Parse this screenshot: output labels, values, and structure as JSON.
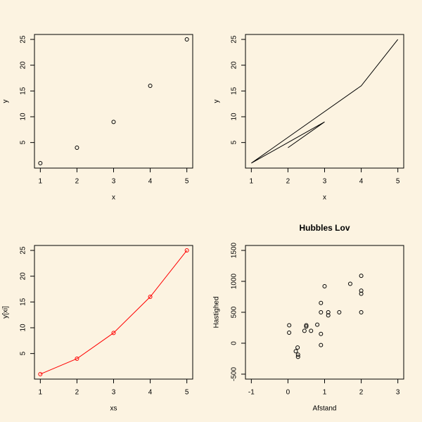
{
  "chart_data": [
    {
      "type": "scatter",
      "x_label": "x",
      "y_label": "y",
      "x": [
        1,
        2,
        3,
        4,
        5
      ],
      "values": [
        1,
        4,
        9,
        16,
        25
      ],
      "color": "#000000",
      "xlim": [
        0.84,
        5.16
      ],
      "ylim": [
        0.04,
        25.96
      ],
      "xticks": [
        1,
        2,
        3,
        4,
        5
      ],
      "yticks": [
        5,
        10,
        15,
        20,
        25
      ]
    },
    {
      "type": "line",
      "x_label": "x",
      "y_label": "y",
      "x": [
        2,
        3,
        1,
        4,
        5
      ],
      "values": [
        4,
        9,
        1,
        16,
        25
      ],
      "color": "#000000",
      "xlim": [
        0.84,
        5.16
      ],
      "ylim": [
        0.04,
        25.96
      ],
      "xticks": [
        1,
        2,
        3,
        4,
        5
      ],
      "yticks": [
        5,
        10,
        15,
        20,
        25
      ]
    },
    {
      "type": "line",
      "markers": true,
      "x_label": "xs",
      "y_label": "y[xi]",
      "x": [
        1,
        2,
        3,
        4,
        5
      ],
      "values": [
        1,
        4,
        9,
        16,
        25
      ],
      "color": "#ff0000",
      "xlim": [
        0.84,
        5.16
      ],
      "ylim": [
        0.04,
        25.96
      ],
      "xticks": [
        1,
        2,
        3,
        4,
        5
      ],
      "yticks": [
        5,
        10,
        15,
        20,
        25
      ]
    },
    {
      "type": "scatter",
      "title": "Hubbles Lov",
      "x_label": "Afstand",
      "y_label": "Hastighed",
      "x": [
        0.032,
        0.034,
        0.214,
        0.263,
        0.275,
        0.275,
        0.45,
        0.5,
        0.5,
        0.63,
        0.8,
        0.9,
        0.9,
        0.9,
        0.9,
        1.0,
        1.1,
        1.1,
        1.4,
        1.7,
        2.0,
        2.0,
        2.0,
        2.0
      ],
      "values": [
        170,
        290,
        -130,
        -70,
        -185,
        -220,
        200,
        290,
        270,
        200,
        300,
        -30,
        650,
        150,
        500,
        920,
        450,
        500,
        500,
        960,
        500,
        850,
        800,
        1090
      ],
      "color": "#000000",
      "xlim": [
        -1.16,
        3.16
      ],
      "ylim": [
        -580,
        1580
      ],
      "xticks": [
        -1,
        0,
        1,
        2,
        3
      ],
      "yticks": [
        -500,
        0,
        500,
        1000,
        1500
      ]
    }
  ]
}
